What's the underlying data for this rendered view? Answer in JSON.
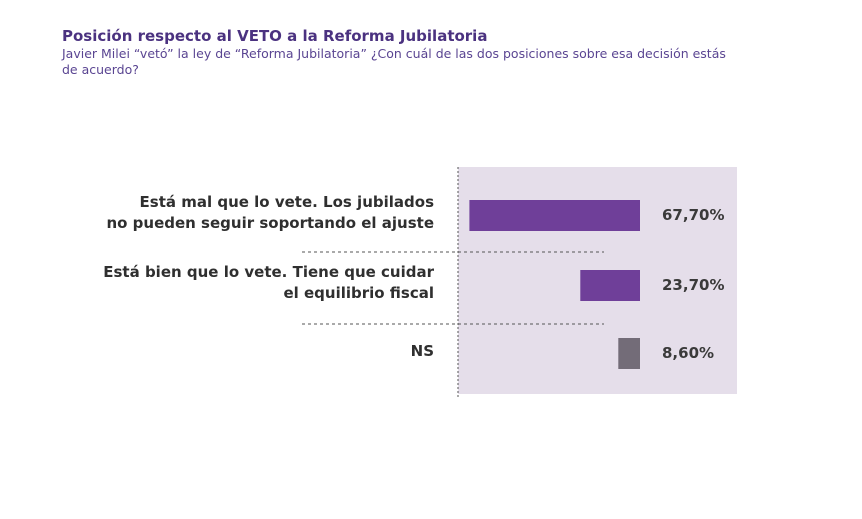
{
  "header": {
    "title": "Posición respecto al VETO a la Reforma Jubilatoria",
    "subtitle": "Javier Milei “vetó” la ley de “Reforma Jubilatoria” ¿Con cuál de las dos posiciones sobre esa decisión estás de acuerdo?"
  },
  "colors": {
    "title": "#4b3280",
    "bar_primary": "#6f3f99",
    "bar_ns": "#736c78",
    "panel": "#e5deea",
    "label": "#2f2f2f"
  },
  "chart_data": {
    "type": "bar",
    "orientation": "horizontal",
    "title": "Posición respecto al VETO a la Reforma Jubilatoria",
    "categories": [
      "Está mal que lo vete. Los jubilados no pueden seguir soportando el ajuste",
      "Está bien que lo vete. Tiene que cuidar el equilibrio fiscal",
      "NS"
    ],
    "label_lines": [
      [
        "Está mal que lo vete. Los jubilados",
        "no pueden seguir soportando el ajuste"
      ],
      [
        "Está bien que lo vete. Tiene que cuidar",
        "el equilibrio fiscal"
      ],
      [
        "NS"
      ]
    ],
    "values": [
      67.7,
      23.7,
      8.6
    ],
    "value_labels": [
      "67,70%",
      "23,70%",
      "8,60%"
    ],
    "bar_colors": [
      "#6f3f99",
      "#6f3f99",
      "#736c78"
    ],
    "unit": "%",
    "legend": "none",
    "grid": false
  }
}
